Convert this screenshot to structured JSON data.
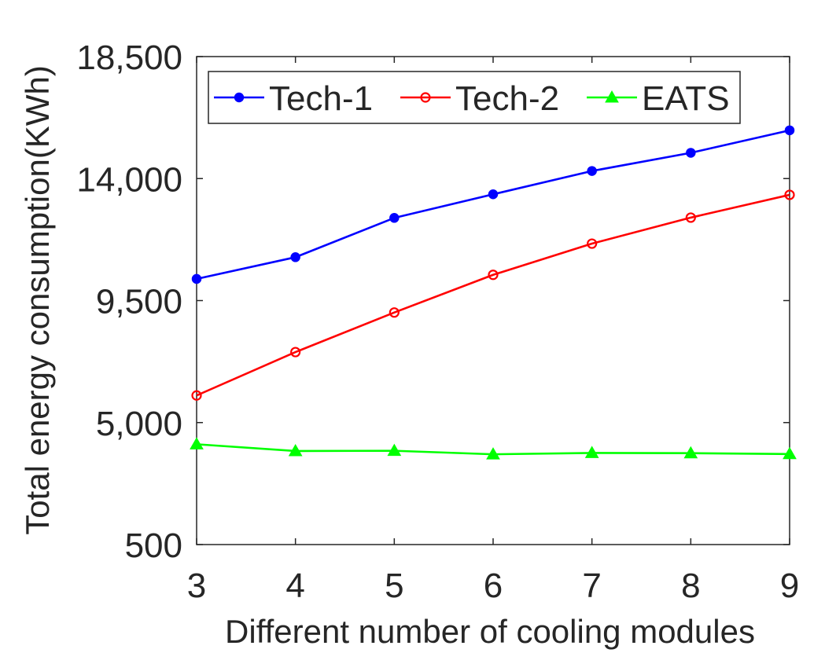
{
  "chart_data": {
    "type": "line",
    "title": "",
    "xlabel": "Different number of cooling modules",
    "ylabel": "Total energy consumption(KWh)",
    "x": [
      3,
      4,
      5,
      6,
      7,
      8,
      9
    ],
    "xlim": [
      3,
      9
    ],
    "ylim": [
      500,
      18500
    ],
    "xticks": [
      3,
      4,
      5,
      6,
      7,
      8,
      9
    ],
    "xtick_labels": [
      "3",
      "4",
      "5",
      "6",
      "7",
      "8",
      "9"
    ],
    "yticks": [
      500,
      5000,
      9500,
      14000,
      18500
    ],
    "ytick_labels": [
      "500",
      "5,000",
      "9,500",
      "14,000",
      "18,500"
    ],
    "grid": false,
    "legend_position": "top",
    "series": [
      {
        "name": "Tech-1",
        "marker": "dot",
        "color": "#0000ff",
        "values": [
          10300,
          11100,
          12550,
          13420,
          14280,
          14950,
          15780
        ]
      },
      {
        "name": "Tech-2",
        "marker": "circle",
        "color": "#ff0000",
        "values": [
          6000,
          7600,
          9060,
          10450,
          11600,
          12560,
          13400
        ]
      },
      {
        "name": "EATS",
        "marker": "triangle",
        "color": "#00ff00",
        "values": [
          4200,
          3950,
          3960,
          3830,
          3880,
          3870,
          3840
        ]
      }
    ]
  }
}
